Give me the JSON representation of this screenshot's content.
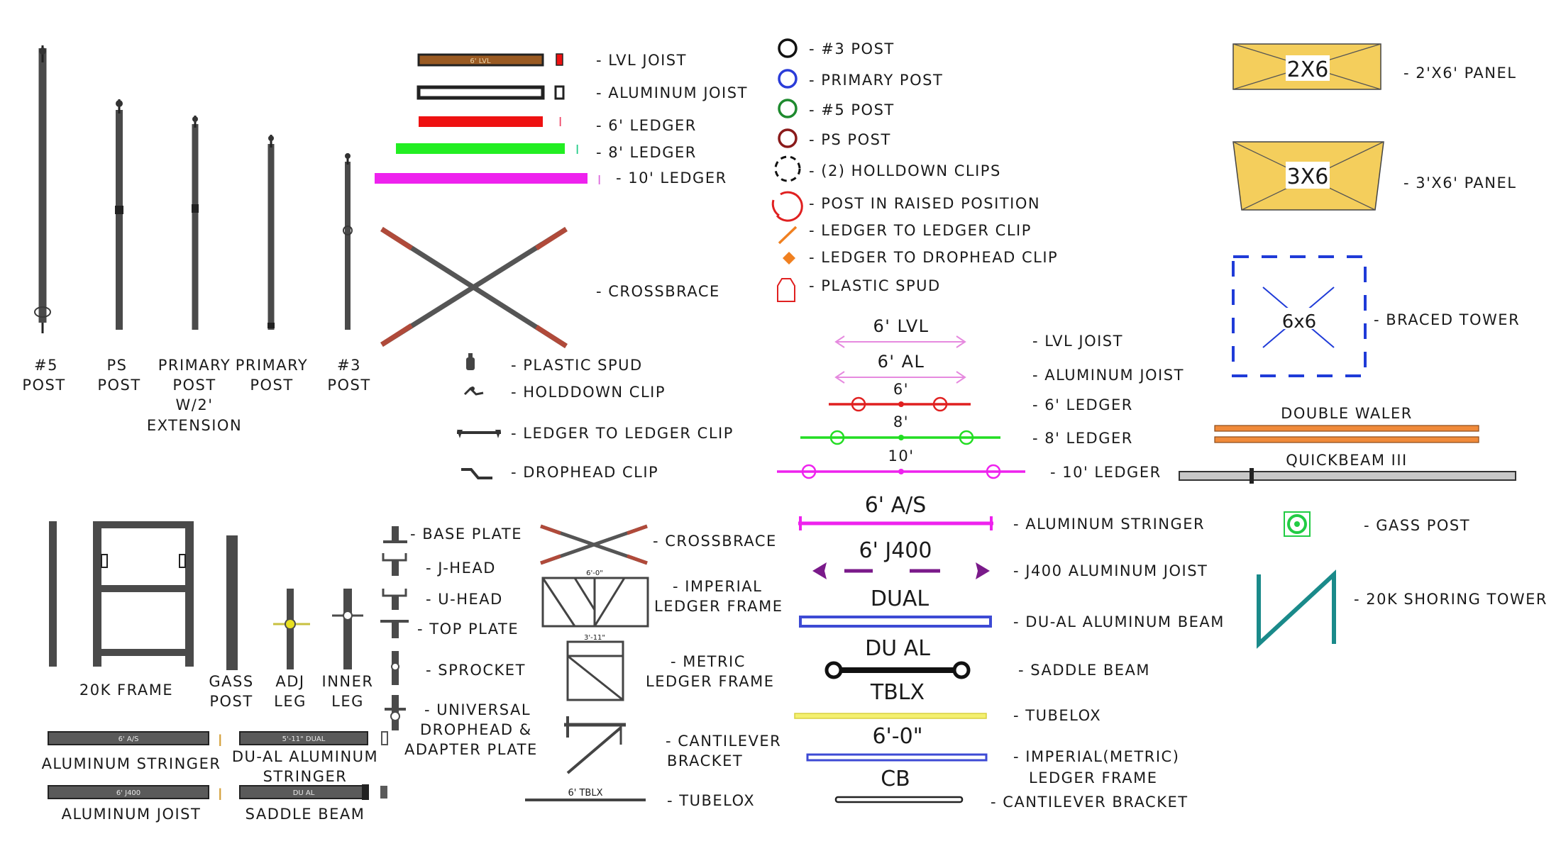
{
  "posts": {
    "n5": [
      "#5",
      "POST"
    ],
    "ps": [
      "PS",
      "POST"
    ],
    "primary_ext": [
      "PRIMARY",
      "POST",
      "W/2'",
      "EXTENSION"
    ],
    "primary": [
      "PRIMARY",
      "POST"
    ],
    "n3": [
      "#3",
      "POST"
    ]
  },
  "elevation_legend": {
    "lvl_joist": "- LVL JOIST",
    "lvl_tag": "6' LVL",
    "aluminum_joist": "- ALUMINUM JOIST",
    "ledger_6": "- 6' LEDGER",
    "ledger_8": "- 8' LEDGER",
    "ledger_10": "- 10' LEDGER",
    "crossbrace": "- CROSSBRACE",
    "plastic_spud": "- PLASTIC SPUD",
    "holddown_clip": "- HOLDDOWN CLIP",
    "ledger_to_ledger_clip": "- LEDGER TO LEDGER CLIP",
    "drophead_clip": "- DROPHEAD CLIP"
  },
  "plan_symbols": {
    "post_3": "- #3 POST",
    "primary_post": "- PRIMARY POST",
    "post_5": "- #5 POST",
    "ps_post": "- PS POST",
    "holldown_clips": "- (2) HOLLDOWN CLIPS",
    "post_raised": "- POST IN RAISED POSITION",
    "ledger_to_ledger_clip": "- LEDGER TO LEDGER CLIP",
    "ledger_to_drophead_clip": "- LEDGER TO DROPHEAD CLIP",
    "plastic_spud": "- PLASTIC SPUD",
    "colors": {
      "post_3": "#111111",
      "primary_post": "#2a3cd8",
      "post_5": "#1e8a2e",
      "ps_post": "#8a1a1a",
      "raised": "#e02020",
      "clip": "#f08020"
    }
  },
  "plan_lines": {
    "lvl_tag": "6' LVL",
    "lvl_label": "- LVL JOIST",
    "al_tag": "6' AL",
    "al_label": "- ALUMINUM JOIST",
    "l6_tag": "6'",
    "l6_label": "- 6' LEDGER",
    "l8_tag": "8'",
    "l8_label": "- 8' LEDGER",
    "l10_tag": "10'",
    "l10_label": "- 10' LEDGER",
    "as_tag": "6' A/S",
    "as_label": "- ALUMINUM STRINGER",
    "j400_tag": "6' J400",
    "j400_label": "- J400 ALUMINUM JOIST",
    "dual_tag": "DUAL",
    "dual_label": "- DU-AL ALUMINUM BEAM",
    "saddle_tag": "DU AL",
    "saddle_label": "- SADDLE BEAM",
    "tblx_tag": "TBLX",
    "tblx_label": "- TUBELOX",
    "frame_tag": "6'-0\"",
    "frame_label": [
      "- IMPERIAL(METRIC)",
      "LEDGER FRAME"
    ],
    "cb_tag": "CB",
    "cb_label": "- CANTILEVER BRACKET"
  },
  "panels": {
    "p26_tag": "2X6",
    "p26_label": "- 2'X6' PANEL",
    "p36_tag": "3X6",
    "p36_label": "- 3'X6' PANEL",
    "tower_tag": "6x6",
    "tower_label": "- BRACED TOWER",
    "waler_label": "DOUBLE WALER",
    "quickbeam_label": "QUICKBEAM III",
    "gass_post_label": "- GASS POST",
    "shoring_tower_label": "- 20K SHORING TOWER",
    "panel_color": "#f4ce5c"
  },
  "components": {
    "frame_label": "20K FRAME",
    "gass_post": [
      "GASS",
      "POST"
    ],
    "adj_leg": [
      "ADJ",
      "LEG"
    ],
    "inner_leg": [
      "INNER",
      "LEG"
    ],
    "stringer_tag": "6' A/S",
    "stringer_label": "ALUMINUM STRINGER",
    "dual_stringer_tag": "5'-11\" DUAL",
    "dual_stringer_label": [
      "DU-AL ALUMINUM",
      "STRINGER"
    ],
    "joist_tag": "6' J400",
    "joist_label": "ALUMINUM JOIST",
    "saddle_tag": "DU AL",
    "saddle_label": "SADDLE BEAM",
    "base_plate": "- BASE PLATE",
    "j_head": "- J-HEAD",
    "u_head": "- U-HEAD",
    "top_plate": "- TOP PLATE",
    "sprocket": "- SPROCKET",
    "universal": [
      "- UNIVERSAL",
      "DROPHEAD &",
      "ADAPTER PLATE"
    ],
    "crossbrace": "- CROSSBRACE",
    "imperial_frame": [
      "- IMPERIAL",
      "LEDGER FRAME"
    ],
    "imperial_tag": "6'-0\"",
    "metric_frame": [
      "- METRIC",
      "LEDGER FRAME"
    ],
    "metric_tag": "3'-11\"",
    "cantilever": [
      "- CANTILEVER",
      "BRACKET"
    ],
    "tubelox_tag": "6' TBLX",
    "tubelox_label": "- TUBELOX"
  }
}
